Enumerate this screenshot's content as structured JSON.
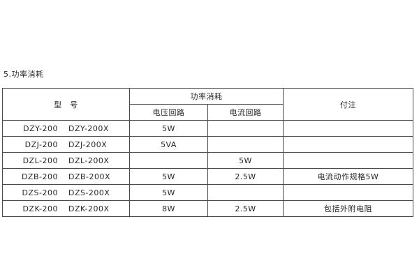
{
  "section_title": "5.功率消耗",
  "table": {
    "border_color": "#4a4a4a",
    "header": {
      "model": "型　号",
      "power_group": "功率消耗",
      "voltage_circuit": "电压回路",
      "current_circuit": "电流回路",
      "notes": "付注"
    },
    "rows": [
      {
        "models": [
          "DZY-200",
          "DZY-200X"
        ],
        "voltage": "5W",
        "current": "",
        "note": ""
      },
      {
        "models": [
          "DZJ-200",
          "DZJ-200X"
        ],
        "voltage": "5VA",
        "current": "",
        "note": ""
      },
      {
        "models": [
          "DZL-200",
          "DZL-200X"
        ],
        "voltage": "",
        "current": "5W",
        "note": ""
      },
      {
        "models": [
          "DZB-200",
          "DZB-200X"
        ],
        "voltage": "5W",
        "current": "2.5W",
        "note": "电流动作规格5W"
      },
      {
        "models": [
          "DZS-200",
          "DZS-200X"
        ],
        "voltage": "5W",
        "current": "",
        "note": ""
      },
      {
        "models": [
          "DZK-200",
          "DZK-200X"
        ],
        "voltage": "8W",
        "current": "2.5W",
        "note": "包括外附电阻"
      }
    ]
  }
}
